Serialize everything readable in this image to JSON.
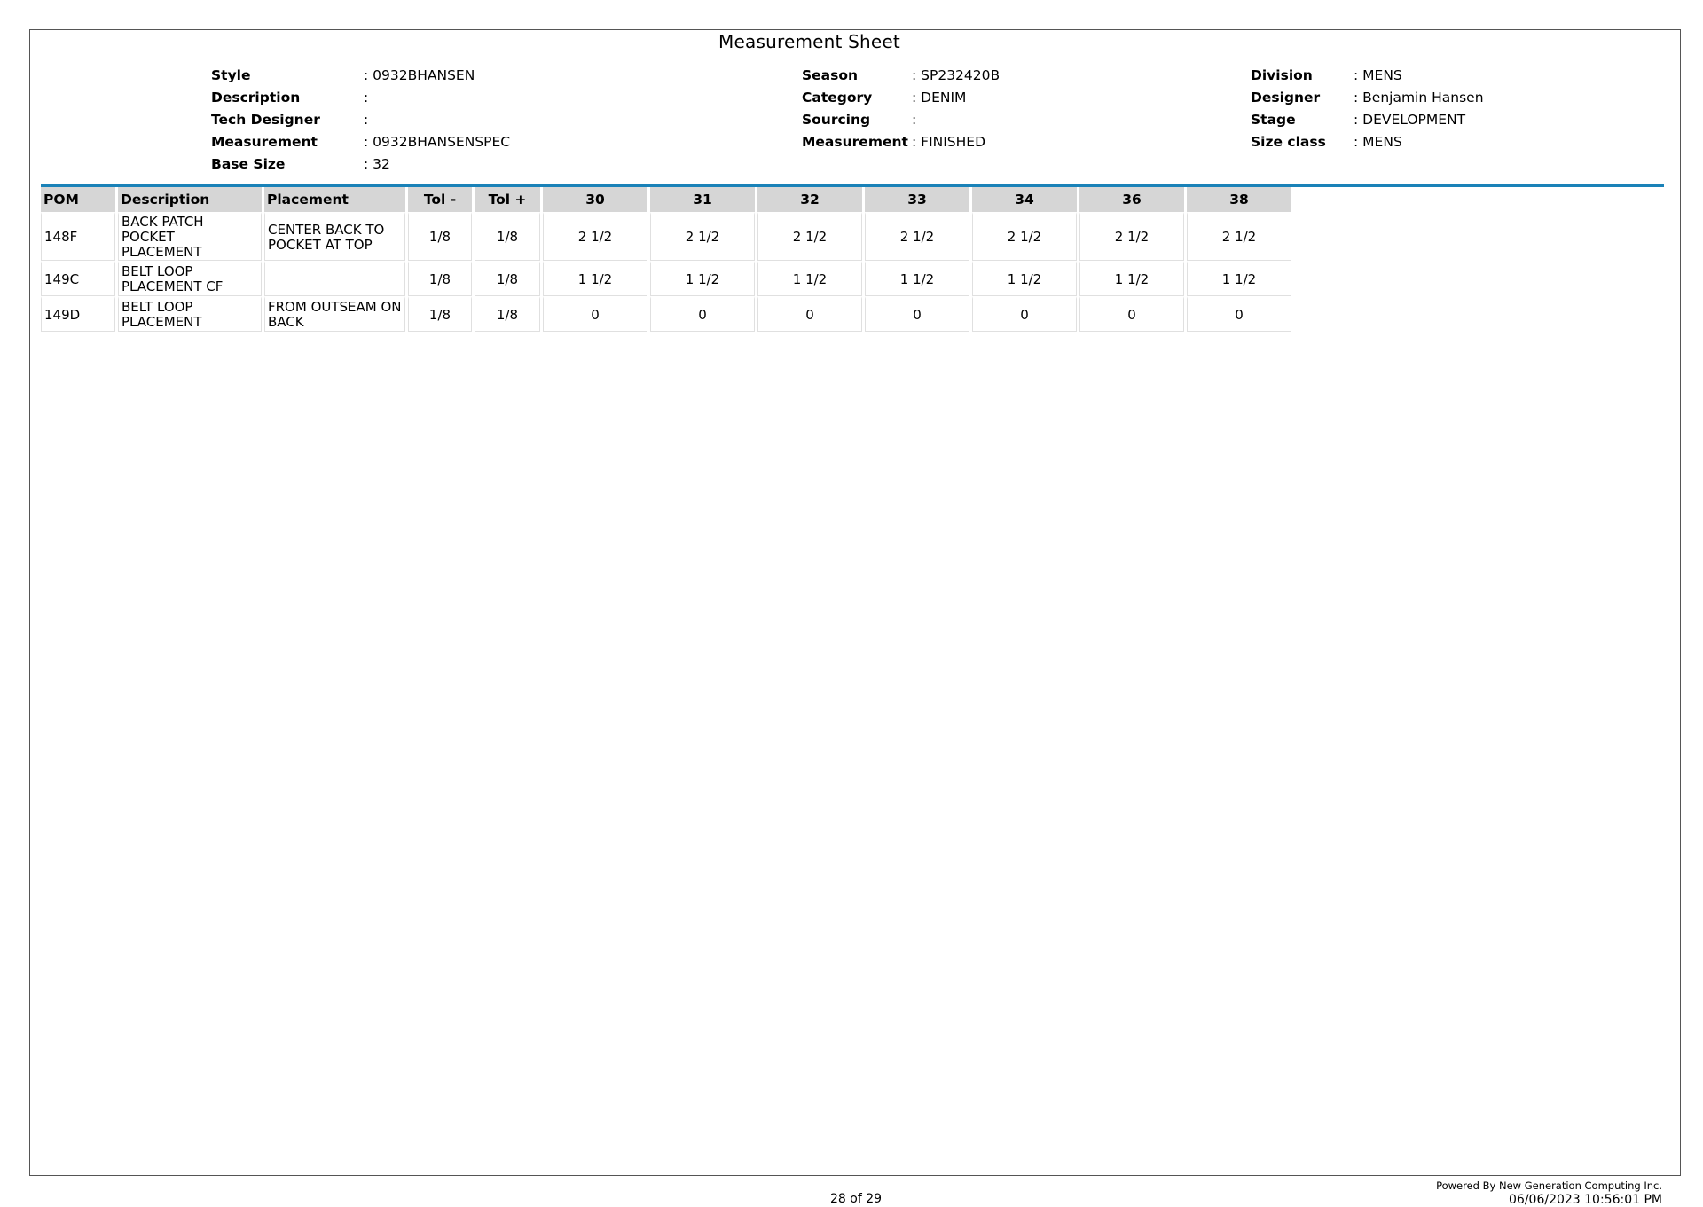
{
  "title": "Measurement Sheet",
  "header": {
    "left": [
      {
        "label": "Style",
        "value": ": 0932BHANSEN"
      },
      {
        "label": "Description",
        "value": ":"
      },
      {
        "label": "Tech Designer",
        "value": ":"
      },
      {
        "label": "Measurement",
        "value": ": 0932BHANSENSPEC"
      },
      {
        "label": "Base Size",
        "value": ": 32"
      }
    ],
    "middle": [
      {
        "label": "Season",
        "value": ": SP232420B"
      },
      {
        "label": "Category",
        "value": ": DENIM"
      },
      {
        "label": "Sourcing",
        "value": ":"
      },
      {
        "label": "Measurement",
        "value": ": FINISHED"
      }
    ],
    "right": [
      {
        "label": "Division",
        "value": ": MENS"
      },
      {
        "label": "Designer",
        "value": ": Benjamin Hansen"
      },
      {
        "label": "Stage",
        "value": ": DEVELOPMENT"
      },
      {
        "label": "Size class",
        "value": ": MENS"
      }
    ]
  },
  "table": {
    "columns": [
      "POM",
      "Description",
      "Placement",
      "Tol -",
      "Tol +",
      "30",
      "31",
      "32",
      "33",
      "34",
      "36",
      "38"
    ],
    "rows": [
      {
        "pom": "148F",
        "description": [
          "BACK PATCH",
          "POCKET PLACEMENT"
        ],
        "placement": [
          "CENTER BACK TO",
          "POCKET AT TOP"
        ],
        "tol_minus": "1/8",
        "tol_plus": "1/8",
        "sizes": [
          "2 1/2",
          "2 1/2",
          "2 1/2",
          "2 1/2",
          "2 1/2",
          "2 1/2",
          "2 1/2"
        ]
      },
      {
        "pom": "149C",
        "description": [
          "BELT LOOP",
          "PLACEMENT CF"
        ],
        "placement": [
          "",
          ""
        ],
        "tol_minus": "1/8",
        "tol_plus": "1/8",
        "sizes": [
          "1 1/2",
          "1 1/2",
          "1 1/2",
          "1 1/2",
          "1 1/2",
          "1 1/2",
          "1 1/2"
        ]
      },
      {
        "pom": "149D",
        "description": [
          "BELT LOOP",
          "PLACEMENT"
        ],
        "placement": [
          "FROM OUTSEAM ON",
          "BACK"
        ],
        "tol_minus": "1/8",
        "tol_plus": "1/8",
        "sizes": [
          "0",
          "0",
          "0",
          "0",
          "0",
          "0",
          "0"
        ]
      }
    ]
  },
  "footer": {
    "page": "28 of 29",
    "powered_by": "Powered By New Generation Computing Inc.",
    "timestamp": "06/06/2023 10:56:01 PM"
  },
  "colors": {
    "accent_rule": "#1a82b8",
    "header_bg": "#d6d6d6"
  }
}
